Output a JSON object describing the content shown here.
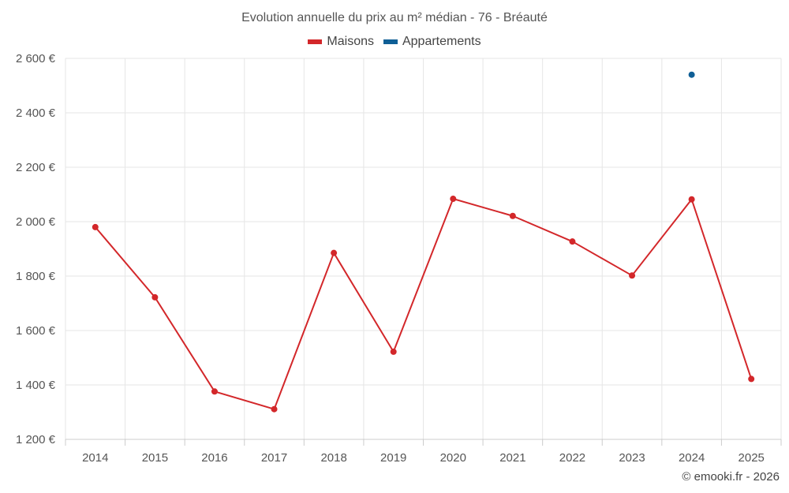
{
  "chart_data": {
    "type": "line",
    "title": "Evolution annuelle du prix au m² médian - 76 - Bréauté",
    "categories": [
      "2014",
      "2015",
      "2016",
      "2017",
      "2018",
      "2019",
      "2020",
      "2021",
      "2022",
      "2023",
      "2024",
      "2025"
    ],
    "series": [
      {
        "name": "Maisons",
        "color": "#d3272a",
        "values": [
          1980,
          1722,
          1376,
          1311,
          1885,
          1522,
          2084,
          2021,
          1927,
          1802,
          2082,
          1422
        ]
      },
      {
        "name": "Appartements",
        "color": "#0f5f96",
        "values": [
          null,
          null,
          null,
          null,
          null,
          null,
          null,
          null,
          null,
          null,
          2540,
          null
        ]
      }
    ],
    "ylim": [
      1200,
      2600
    ],
    "yticks": [
      1200,
      1400,
      1600,
      1800,
      2000,
      2200,
      2400,
      2600
    ],
    "ytick_labels": [
      "1 200 €",
      "1 400 €",
      "1 600 €",
      "1 800 €",
      "2 000 €",
      "2 200 €",
      "2 400 €",
      "2 600 €"
    ],
    "xlabel": "",
    "ylabel": "",
    "grid": true,
    "legend_position": "top-center"
  },
  "credits": "© emooki.fr - 2026"
}
